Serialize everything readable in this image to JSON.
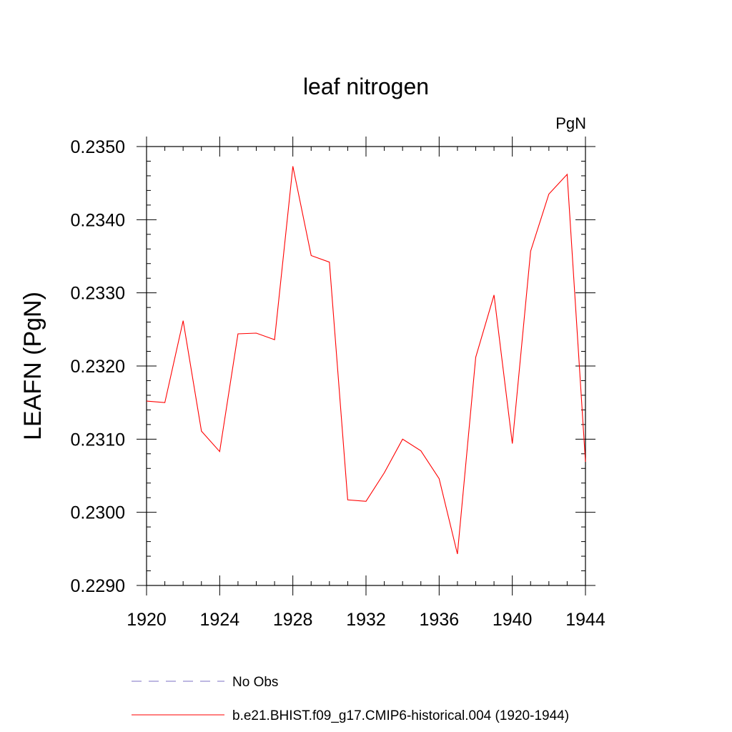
{
  "chart_data": {
    "type": "line",
    "title": "leaf nitrogen",
    "units_label": "PgN",
    "xlabel": "",
    "ylabel": "LEAFN  (PgN)",
    "xlim": [
      1920,
      1944
    ],
    "ylim": [
      0.229,
      0.235
    ],
    "x_ticks": [
      "1920",
      "1924",
      "1928",
      "1932",
      "1936",
      "1940",
      "1944"
    ],
    "y_ticks": [
      "0.2290",
      "0.2300",
      "0.2310",
      "0.2320",
      "0.2330",
      "0.2340",
      "0.2350"
    ],
    "grid": false,
    "legend_position": "bottom",
    "series": [
      {
        "name": "No Obs",
        "color": "#7b6fc4",
        "dash": "dashed",
        "x": [],
        "values": []
      },
      {
        "name": "b.e21.BHIST.f09_g17.CMIP6-historical.004 (1920-1944)",
        "color": "#ff0000",
        "dash": "solid",
        "x": [
          1920,
          1921,
          1922,
          1923,
          1924,
          1925,
          1926,
          1927,
          1928,
          1929,
          1930,
          1931,
          1932,
          1933,
          1934,
          1935,
          1936,
          1937,
          1938,
          1939,
          1940,
          1941,
          1942,
          1943,
          1944
        ],
        "values": [
          0.23152,
          0.2315,
          0.23262,
          0.23111,
          0.23083,
          0.23244,
          0.23245,
          0.23236,
          0.23473,
          0.23351,
          0.23342,
          0.23017,
          0.23015,
          0.23054,
          0.231,
          0.23084,
          0.23046,
          0.22943,
          0.23212,
          0.23297,
          0.23094,
          0.23357,
          0.23435,
          0.23462,
          0.23069
        ]
      }
    ]
  }
}
